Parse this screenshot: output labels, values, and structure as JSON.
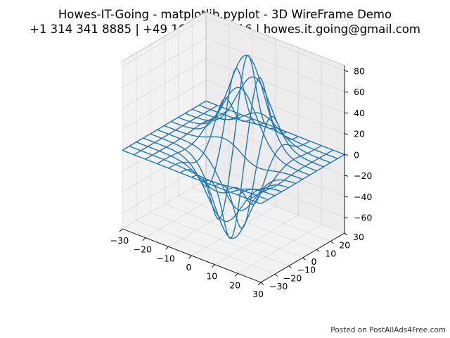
{
  "chart_data": {
    "type": "wireframe-3d",
    "title_lines": [
      "Howes-IT-Going - matplotlib.pyplot - 3D WireFrame Demo",
      "+1 314 341 8885 | +49 160 847 8616 | howes.it.going@gmail.com"
    ],
    "x_ticks": [
      -30,
      -20,
      -10,
      0,
      10,
      20,
      30
    ],
    "y_ticks": [
      -30,
      -20,
      -10,
      0,
      10,
      20,
      30
    ],
    "z_ticks": [
      -60,
      -40,
      -20,
      0,
      20,
      40,
      60,
      80
    ],
    "x_tick_labels": [
      "−30",
      "−20",
      "−10",
      "0",
      "10",
      "20",
      "30"
    ],
    "y_tick_labels": [
      "−30",
      "−20",
      "−10",
      "0",
      "10",
      "20",
      "30"
    ],
    "z_tick_labels": [
      "−60",
      "−40",
      "−20",
      "0",
      "20",
      "40",
      "60",
      "80"
    ],
    "xlim": [
      -30,
      30
    ],
    "ylim": [
      -30,
      30
    ],
    "zlim": [
      -75,
      85
    ],
    "grid": true,
    "line_color": "#1f77b4",
    "surface": {
      "x_range": [
        -30,
        30
      ],
      "y_range": [
        -30,
        30
      ],
      "samples": 12,
      "components": [
        {
          "amplitude": 85,
          "x0": 0,
          "y0": 10,
          "sx": 7.5,
          "sy": 6
        },
        {
          "amplitude": -70,
          "x0": 5,
          "y0": -10,
          "sx": 7.5,
          "sy": 6
        }
      ]
    }
  },
  "watermark": "Posted on PostAllAds4Free.com"
}
